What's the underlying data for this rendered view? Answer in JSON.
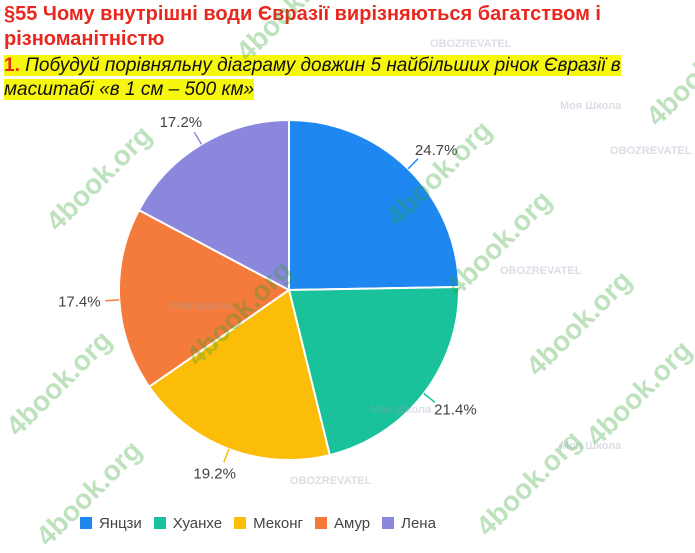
{
  "header": {
    "title": "§55 Чому внутрішні води Євразії вирізняються багатством і різноманітністю",
    "task_number": "1.",
    "task_text": "Побудуй порівняльну діаграму довжин 5 найбільших річок Євразії в масштабі «в 1 см – 500 км»"
  },
  "watermarks": {
    "site": "4book.org",
    "brand1": "Моя Школа",
    "brand2": "OBOZREVATEL"
  },
  "chart_data": {
    "type": "pie",
    "title": "",
    "categories": [
      "Янцзи",
      "Хуанхе",
      "Меконг",
      "Амур",
      "Лена"
    ],
    "values": [
      24.7,
      21.4,
      19.2,
      17.4,
      17.2
    ],
    "value_labels": [
      "24.7%",
      "21.4%",
      "19.2%",
      "17.4%",
      "17.2%"
    ],
    "colors": [
      "#1e88f0",
      "#19c29a",
      "#fbbd08",
      "#f47b3c",
      "#8b87dd"
    ],
    "legend_position": "bottom",
    "start": "12 o'clock, clockwise, Янцзи first"
  }
}
